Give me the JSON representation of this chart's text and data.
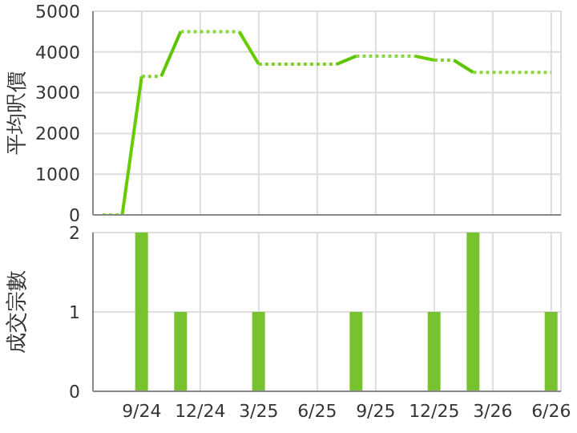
{
  "chart_data": [
    {
      "type": "line",
      "ylabel": "平均呎價",
      "categories": [
        null,
        null,
        null,
        null,
        null,
        null,
        null,
        null,
        null,
        null,
        null,
        null,
        null,
        null,
        null,
        null,
        null,
        null,
        null,
        null,
        null,
        null,
        null,
        null
      ],
      "ylim": [
        0,
        5000
      ],
      "yticks": [
        0,
        1000,
        2000,
        3000,
        4000,
        5000
      ],
      "grid": true,
      "tick_labels": "y",
      "marker": "none",
      "series": [
        {
          "color": "#66cc00",
          "line_style": "solid",
          "values": [
            null,
            0,
            3400,
            null,
            null,
            null,
            null,
            4500,
            3700,
            null,
            null,
            null,
            null,
            null,
            null,
            null,
            3900,
            3800,
            null,
            null,
            null,
            null,
            null,
            null
          ]
        },
        {
          "color": "#5fc400",
          "line_style": "solid",
          "values": [
            null,
            null,
            null,
            3400,
            4500,
            null,
            null,
            null,
            null,
            null,
            null,
            null,
            3700,
            3900,
            null,
            null,
            null,
            null,
            3800,
            3500,
            null,
            null,
            null,
            null
          ]
        },
        {
          "color": "#8ad640",
          "line_style": "dotted",
          "values": [
            0,
            0,
            null,
            null,
            4500,
            4500,
            4500,
            4500,
            null,
            null,
            null,
            null,
            null,
            3900,
            3900,
            3900,
            3900,
            null,
            null,
            3500,
            3500,
            3500,
            3500,
            3500
          ]
        },
        {
          "color": "#80d030",
          "line_style": "dotted",
          "values": [
            null,
            null,
            3400,
            3400,
            null,
            null,
            null,
            null,
            3700,
            3700,
            3700,
            3700,
            3700,
            null,
            null,
            null,
            null,
            3800,
            3800,
            null,
            null,
            null,
            null,
            null
          ]
        }
      ]
    },
    {
      "type": "bar",
      "ylabel": "成交宗數",
      "categories": [
        null,
        null,
        "9/24",
        null,
        null,
        "12/24",
        null,
        null,
        "3/25",
        null,
        null,
        "6/25",
        null,
        null,
        "9/25",
        null,
        null,
        "12/25",
        null,
        null,
        "3/26",
        null,
        null,
        "6/26"
      ],
      "ylim": [
        0,
        2
      ],
      "yticks": [
        0,
        1,
        2
      ],
      "grid": true,
      "color": "#77c22e",
      "values": [
        0,
        0,
        2,
        0,
        1,
        0,
        0,
        0,
        1,
        0,
        0,
        0,
        0,
        1,
        0,
        0,
        0,
        1,
        0,
        2,
        0,
        0,
        0,
        1
      ]
    }
  ]
}
